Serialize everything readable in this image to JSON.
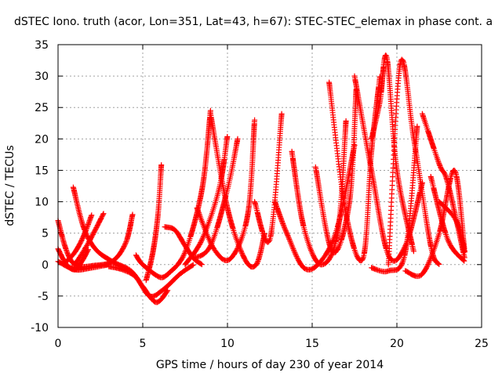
{
  "chart_data": {
    "type": "scatter",
    "title": "dSTEC Iono. truth (acor, Lon=351, Lat=43, h=67): STEC-STEC_elemax in phase cont. a",
    "xlabel": "GPS time / hours of day 230 of year 2014",
    "ylabel": "dSTEC  / TECUs",
    "xlim": [
      0,
      25
    ],
    "ylim": [
      -10,
      35
    ],
    "xticks": [
      0,
      5,
      10,
      15,
      20,
      25
    ],
    "yticks": [
      -10,
      -5,
      0,
      5,
      10,
      15,
      20,
      25,
      30,
      35
    ],
    "grid": true,
    "legend": "none",
    "marker": "plus",
    "color": "#ff0000",
    "series": [
      {
        "x": [
          0.0,
          0.4,
          0.8,
          1.2
        ],
        "y": [
          7.0,
          3.0,
          0.5,
          0.0
        ]
      },
      {
        "x": [
          0.0,
          0.5,
          1.0,
          1.4,
          1.8
        ],
        "y": [
          2.5,
          0.0,
          -0.8,
          0.5,
          2.5
        ]
      },
      {
        "x": [
          0.0,
          1.0,
          2.0,
          3.0
        ],
        "y": [
          0.5,
          -0.8,
          -0.5,
          0.0
        ]
      },
      {
        "x": [
          0.9,
          1.5,
          2.2,
          3.2,
          4.3,
          5.0,
          5.8,
          6.5
        ],
        "y": [
          12.3,
          6.0,
          2.5,
          0.5,
          -1.0,
          -3.5,
          -6.0,
          -4.0
        ]
      },
      {
        "x": [
          0.5,
          1.0,
          1.5,
          2.0
        ],
        "y": [
          0.5,
          2.0,
          4.5,
          8.0
        ]
      },
      {
        "x": [
          1.0,
          1.8,
          2.7
        ],
        "y": [
          0.0,
          3.5,
          8.2
        ]
      },
      {
        "x": [
          0.8,
          2.0,
          3.2,
          4.0,
          4.4
        ],
        "y": [
          -0.5,
          -0.2,
          0.5,
          3.5,
          8.0
        ]
      },
      {
        "x": [
          3.0,
          3.8,
          4.6,
          5.4,
          6.2,
          7.2,
          8.0
        ],
        "y": [
          -0.3,
          -0.8,
          -2.0,
          -5.0,
          -4.0,
          -1.5,
          0.0
        ]
      },
      {
        "x": [
          4.6,
          5.0,
          6.0,
          6.5
        ],
        "y": [
          1.5,
          0.0,
          -2.0,
          -1.5
        ]
      },
      {
        "x": [
          5.2,
          5.6,
          5.9,
          6.1
        ],
        "y": [
          -2.5,
          2.0,
          8.0,
          16.0
        ]
      },
      {
        "x": [
          6.3,
          6.9,
          7.5,
          8.0,
          8.5
        ],
        "y": [
          6.0,
          5.5,
          3.0,
          1.0,
          0.0
        ]
      },
      {
        "x": [
          6.5,
          7.5,
          8.5,
          9.0
        ],
        "y": [
          -1.5,
          2.0,
          12.0,
          24.5
        ]
      },
      {
        "x": [
          7.5,
          8.5,
          9.5,
          10.0
        ],
        "y": [
          0.0,
          4.0,
          12.0,
          20.5
        ]
      },
      {
        "x": [
          8.0,
          9.0,
          10.0,
          10.6
        ],
        "y": [
          1.0,
          3.0,
          12.0,
          20.0
        ]
      },
      {
        "x": [
          8.2,
          9.2,
          10.2,
          11.2,
          11.6
        ],
        "y": [
          9.0,
          2.5,
          1.0,
          8.0,
          23.0
        ]
      },
      {
        "x": [
          9.0,
          10.0,
          11.0,
          11.7,
          12.2
        ],
        "y": [
          24.0,
          9.0,
          1.0,
          0.0,
          5.0
        ]
      },
      {
        "x": [
          11.6,
          12.5,
          13.2
        ],
        "y": [
          10.0,
          4.0,
          24.0
        ]
      },
      {
        "x": [
          12.8,
          13.5,
          14.5,
          15.5,
          16.5,
          17.5
        ],
        "y": [
          10.0,
          5.0,
          -0.5,
          0.5,
          6.0,
          19.0
        ]
      },
      {
        "x": [
          13.8,
          14.5,
          15.5,
          16.5,
          17.0
        ],
        "y": [
          18.0,
          6.0,
          0.0,
          5.0,
          23.0
        ]
      },
      {
        "x": [
          15.2,
          16.2,
          17.2,
          17.6
        ],
        "y": [
          15.5,
          2.0,
          10.0,
          28.0
        ]
      },
      {
        "x": [
          16.0,
          17.0,
          18.0,
          18.5,
          19.0
        ],
        "y": [
          29.0,
          8.0,
          1.0,
          18.0,
          30.0
        ]
      },
      {
        "x": [
          17.5,
          18.5,
          19.5,
          20.5,
          21.5
        ],
        "y": [
          30.0,
          15.0,
          1.5,
          3.0,
          13.0
        ]
      },
      {
        "x": [
          18.5,
          19.0,
          19.4,
          20.0,
          21.0
        ],
        "y": [
          20.0,
          26.0,
          33.0,
          15.0,
          2.0
        ]
      },
      {
        "x": [
          19.5,
          20.2,
          21.0,
          22.0,
          22.5
        ],
        "y": [
          0.0,
          32.0,
          20.0,
          3.0,
          0.0
        ]
      },
      {
        "x": [
          18.5,
          19.5,
          20.5,
          21.2
        ],
        "y": [
          -0.5,
          -1.0,
          2.0,
          22.0
        ]
      },
      {
        "x": [
          20.5,
          21.5,
          22.5,
          23.4,
          24.0
        ],
        "y": [
          -1.0,
          -1.5,
          5.0,
          15.0,
          2.0
        ]
      },
      {
        "x": [
          21.5,
          22.5,
          23.0,
          24.0
        ],
        "y": [
          24.0,
          16.0,
          13.0,
          1.0
        ]
      },
      {
        "x": [
          22.0,
          23.0,
          24.0
        ],
        "y": [
          14.0,
          4.0,
          0.5
        ]
      },
      {
        "x": [
          22.5,
          23.5,
          24.0
        ],
        "y": [
          10.0,
          7.0,
          2.0
        ]
      }
    ]
  }
}
